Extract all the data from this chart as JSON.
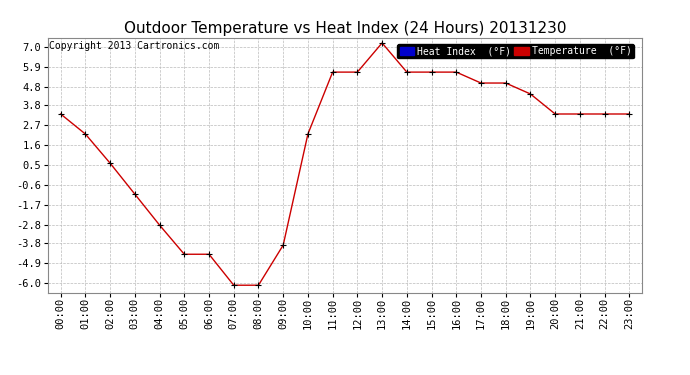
{
  "title": "Outdoor Temperature vs Heat Index (24 Hours) 20131230",
  "copyright": "Copyright 2013 Cartronics.com",
  "background_color": "#ffffff",
  "plot_bg_color": "#ffffff",
  "grid_color": "#bbbbbb",
  "line_color": "#cc0000",
  "ylim": [
    -6.5,
    7.5
  ],
  "yticks": [
    -6.0,
    -4.9,
    -3.8,
    -2.8,
    -1.7,
    -0.6,
    0.5,
    1.6,
    2.7,
    3.8,
    4.8,
    5.9,
    7.0
  ],
  "hours": [
    "00:00",
    "01:00",
    "02:00",
    "03:00",
    "04:00",
    "05:00",
    "06:00",
    "07:00",
    "08:00",
    "09:00",
    "10:00",
    "11:00",
    "12:00",
    "13:00",
    "14:00",
    "15:00",
    "16:00",
    "17:00",
    "18:00",
    "19:00",
    "20:00",
    "21:00",
    "22:00",
    "23:00"
  ],
  "temp_values": [
    3.3,
    2.2,
    0.6,
    -1.1,
    -2.8,
    -4.4,
    -4.4,
    -6.1,
    -6.1,
    -3.9,
    2.2,
    5.6,
    5.6,
    7.2,
    5.6,
    5.6,
    5.6,
    5.0,
    5.0,
    4.4,
    3.3,
    3.3,
    3.3,
    3.3
  ],
  "legend_heat_color": "#0000cc",
  "legend_temp_color": "#cc0000",
  "title_fontsize": 11,
  "copyright_fontsize": 7,
  "tick_fontsize": 7.5
}
